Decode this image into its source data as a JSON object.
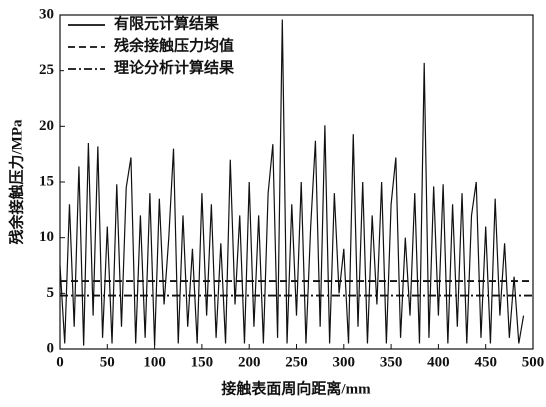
{
  "chart_data": {
    "type": "line",
    "xlabel": "接触表面周向距离/mm",
    "ylabel": "残余接触压力/MPa",
    "xlim": [
      0,
      500
    ],
    "xticks": [
      0,
      50,
      100,
      150,
      200,
      250,
      300,
      350,
      400,
      450,
      500
    ],
    "ylim": [
      0,
      30
    ],
    "yticks": [
      0,
      5,
      10,
      15,
      20,
      25,
      30
    ],
    "legend": "upper left",
    "series": [
      {
        "name": "有限元计算结果",
        "color": "#111111",
        "style": "solid",
        "x": [
          0,
          5,
          10,
          15,
          20,
          25,
          30,
          35,
          40,
          45,
          50,
          55,
          60,
          65,
          70,
          75,
          80,
          85,
          90,
          95,
          100,
          105,
          110,
          115,
          120,
          125,
          130,
          135,
          140,
          145,
          150,
          155,
          160,
          165,
          170,
          175,
          180,
          185,
          190,
          195,
          200,
          205,
          210,
          215,
          220,
          225,
          230,
          235,
          240,
          245,
          250,
          255,
          260,
          265,
          270,
          275,
          280,
          285,
          290,
          295,
          300,
          305,
          310,
          315,
          320,
          325,
          330,
          335,
          340,
          345,
          350,
          355,
          360,
          365,
          370,
          375,
          380,
          385,
          390,
          395,
          400,
          405,
          410,
          415,
          420,
          425,
          430,
          435,
          440,
          445,
          450,
          455,
          460,
          465,
          470,
          475,
          480,
          485,
          490
        ],
        "values": [
          7.5,
          0.5,
          13,
          2,
          16.4,
          0.3,
          18.5,
          3,
          18.2,
          1,
          11,
          0.5,
          14.8,
          2,
          14.5,
          17.2,
          0.5,
          12,
          1,
          14,
          0.3,
          13.5,
          4,
          10,
          18,
          0.5,
          12,
          2,
          9,
          0.5,
          14,
          3,
          13,
          1,
          9.5,
          0.5,
          17,
          4,
          12,
          0.5,
          15,
          2,
          12,
          0.5,
          14,
          18.4,
          1,
          29.6,
          0.5,
          13,
          3,
          15,
          0.5,
          11,
          18.7,
          2,
          20.1,
          0.5,
          14,
          5,
          9,
          0.5,
          19.3,
          2,
          15,
          0.5,
          12,
          4,
          15,
          0.5,
          13,
          17.2,
          1,
          10,
          3,
          14,
          0.5,
          25.7,
          1,
          14.6,
          3,
          14.8,
          0.5,
          13,
          2,
          14,
          0.5,
          12,
          15,
          1,
          11,
          0.5,
          13.5,
          3,
          9.5,
          1,
          6.5,
          0.5,
          3
        ]
      },
      {
        "name": "残余接触压力均值",
        "color": "#111111",
        "style": "dashed",
        "x": [
          0,
          500
        ],
        "values": [
          6.1,
          6.1
        ]
      },
      {
        "name": "理论分析计算结果",
        "color": "#111111",
        "style": "dashdot",
        "x": [
          0,
          500
        ],
        "values": [
          4.8,
          4.8
        ]
      }
    ]
  }
}
